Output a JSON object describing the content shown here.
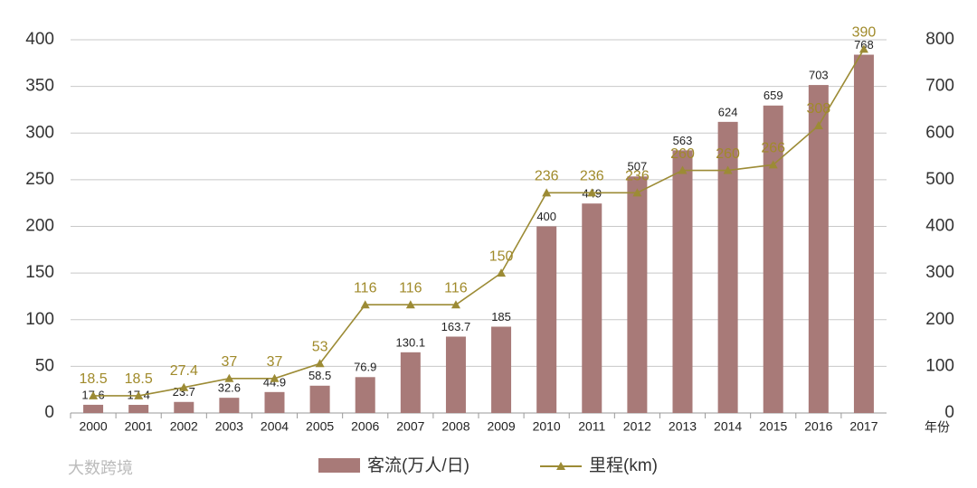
{
  "chart_data": {
    "type": "bar-line",
    "categories": [
      "2000",
      "2001",
      "2002",
      "2003",
      "2004",
      "2005",
      "2006",
      "2007",
      "2008",
      "2009",
      "2010",
      "2011",
      "2012",
      "2013",
      "2014",
      "2015",
      "2016",
      "2017"
    ],
    "x_label": "年份",
    "series": [
      {
        "name": "客流(万人/日)",
        "type": "bar",
        "axis": "y2",
        "color": "#a87a78",
        "values": [
          17.6,
          17.4,
          23.7,
          32.6,
          44.9,
          58.5,
          76.9,
          130.1,
          163.7,
          185,
          400,
          449,
          507,
          563,
          624,
          659,
          703,
          768
        ]
      },
      {
        "name": "里程(km)",
        "type": "line",
        "color": "#9c8b35",
        "values": [
          18.5,
          18.5,
          27.4,
          37,
          37,
          53,
          116,
          116,
          116,
          150,
          236,
          236,
          236,
          260,
          260,
          266,
          308,
          390
        ]
      }
    ],
    "ylim": [
      0,
      400
    ],
    "yticks": [
      0,
      50,
      100,
      150,
      200,
      250,
      300,
      350,
      400
    ],
    "y2lim": [
      0,
      800
    ],
    "y2ticks": [
      0,
      100,
      200,
      300,
      400,
      500,
      600,
      700,
      800
    ],
    "grid": true,
    "legend": "bottom",
    "watermark": "大数跨境"
  }
}
